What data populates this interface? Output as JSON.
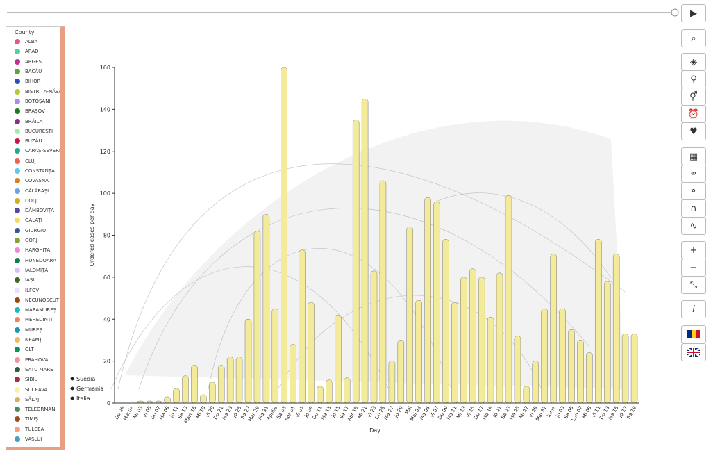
{
  "chart_data": {
    "type": "bar",
    "y_label": "Ordered cases per day",
    "x_label": "Day",
    "categories": [
      "Du 29",
      "Martie",
      "Mi 03",
      "Vi 05",
      "Du 07",
      "Ma 09",
      "Jo 11",
      "Sa 13",
      "Mart 15",
      "Mi 18",
      "Vi 20",
      "Du 21",
      "Ma 23",
      "Jo 25",
      "Sa 27",
      "Mar 29",
      "Ma 31",
      "Aprilie",
      "Sa 03",
      "Apr 05",
      "Vi 07",
      "Jo 09",
      "Du 11",
      "Ma 13",
      "Jo 15",
      "Sa 17",
      "Apr 19",
      "Mi 21",
      "Vi 23",
      "Du 25",
      "Ma 27",
      "Jo 29",
      "Mai",
      "Mai 03",
      "Ma 05",
      "Vi 07",
      "Du 09",
      "Ma 11",
      "Mi 13",
      "Vi 15",
      "Du 17",
      "Ma 19",
      "Jo 21",
      "Sa 23",
      "Ma 25",
      "Mi 27",
      "Vi 29",
      "Mai 31",
      "Iunie",
      "Jo 03",
      "Sa 05",
      "Lun 07",
      "Mi 09",
      "Vi 11",
      "Du 13",
      "Ma 15",
      "Jo 17",
      "Sa 19"
    ],
    "values": [
      0,
      0,
      1,
      1,
      1,
      3,
      7,
      13,
      18,
      4,
      10,
      18,
      22,
      22,
      40,
      82,
      90,
      45,
      160,
      28,
      73,
      48,
      8,
      11,
      42,
      12,
      135,
      145,
      63,
      106,
      20,
      30,
      84,
      49,
      98,
      96,
      78,
      48,
      60,
      64,
      60,
      41,
      62,
      99,
      32,
      8,
      20,
      45,
      71,
      45,
      35,
      30,
      24,
      78,
      58,
      71,
      33,
      33
    ],
    "color": "#f3ea9a",
    "ylim": [
      0,
      160
    ],
    "yticks": [
      0,
      20,
      40,
      60,
      80,
      100,
      120,
      140,
      160
    ]
  },
  "legend": {
    "title": "County",
    "items": [
      {
        "name": "ALBA",
        "color": "#e8567a"
      },
      {
        "name": "ARAD",
        "color": "#4fd0a0"
      },
      {
        "name": "ARGEȘ",
        "color": "#c2309a"
      },
      {
        "name": "BACĂU",
        "color": "#5aa832"
      },
      {
        "name": "BIHOR",
        "color": "#2a4fc0"
      },
      {
        "name": "BISTRIȚA-NĂSĂ",
        "color": "#b3c83a"
      },
      {
        "name": "BOTOȘANI",
        "color": "#a58ef0"
      },
      {
        "name": "BRAȘOV",
        "color": "#1f7a1f"
      },
      {
        "name": "BRĂILA",
        "color": "#8a2f8a"
      },
      {
        "name": "BUCUREȘTI",
        "color": "#a0f09a"
      },
      {
        "name": "BUZĂU",
        "color": "#c8164a"
      },
      {
        "name": "CARAȘ-SEVERIN",
        "color": "#20a890"
      },
      {
        "name": "CLUJ",
        "color": "#f06050"
      },
      {
        "name": "CONSTANȚA",
        "color": "#5cc8f0"
      },
      {
        "name": "COVASNA",
        "color": "#d88020"
      },
      {
        "name": "CĂLĂRAȘI",
        "color": "#6aa0e8"
      },
      {
        "name": "DOLJ",
        "color": "#d0b020"
      },
      {
        "name": "DÂMBOVIȚA",
        "color": "#5a4a9a"
      },
      {
        "name": "GALAȚI",
        "color": "#f8d860"
      },
      {
        "name": "GIURGIU",
        "color": "#3a5a8a"
      },
      {
        "name": "GORJ",
        "color": "#8aa030"
      },
      {
        "name": "HARGHITA",
        "color": "#f088d8"
      },
      {
        "name": "HUNEDOARA",
        "color": "#108050"
      },
      {
        "name": "IALOMIȚA",
        "color": "#d8c0f0"
      },
      {
        "name": "IAȘI",
        "color": "#3a6a2a"
      },
      {
        "name": "ILFOV",
        "color": "#e8e0f8"
      },
      {
        "name": "NECUNOSCUT",
        "color": "#9a4a10"
      },
      {
        "name": "MARAMUREȘ",
        "color": "#20b8c0"
      },
      {
        "name": "MEHEDINȚI",
        "color": "#f08060"
      },
      {
        "name": "MUREȘ",
        "color": "#1898b8"
      },
      {
        "name": "NEAMȚ",
        "color": "#f0b860"
      },
      {
        "name": "OLT",
        "color": "#109060"
      },
      {
        "name": "PRAHOVA",
        "color": "#f090a0"
      },
      {
        "name": "SATU MARE",
        "color": "#2a6040"
      },
      {
        "name": "SIBIU",
        "color": "#a03050"
      },
      {
        "name": "SUCEAVA",
        "color": "#f8f0a8"
      },
      {
        "name": "SĂLAJ",
        "color": "#d8b060"
      },
      {
        "name": "TELEORMAN",
        "color": "#4a8a60"
      },
      {
        "name": "TIMIȘ",
        "color": "#a04a20"
      },
      {
        "name": "TULCEA",
        "color": "#f8a080"
      },
      {
        "name": "VASLUI",
        "color": "#40a0c0"
      }
    ]
  },
  "countries": [
    "Suedia",
    "Germania",
    "Italia"
  ],
  "toolbar": {
    "info": "i"
  }
}
